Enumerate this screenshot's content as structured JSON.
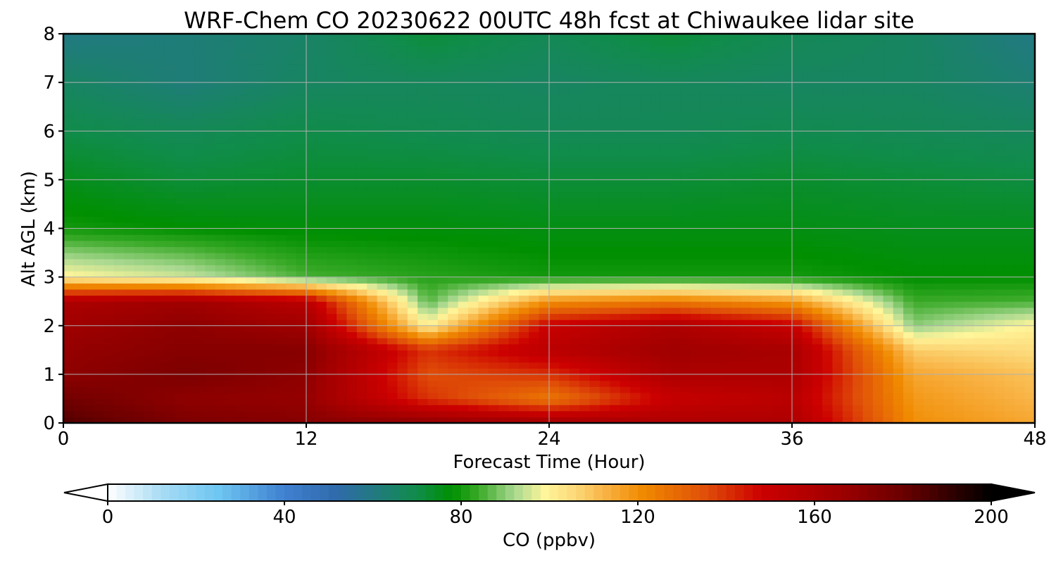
{
  "chart_data": {
    "type": "heatmap",
    "title": "WRF-Chem CO  20230622 00UTC 48h fcst at Chiwaukee lidar site",
    "xlabel": "Forecast Time (Hour)",
    "ylabel": "Alt AGL (km)",
    "xlim": [
      0,
      48
    ],
    "ylim": [
      0,
      8
    ],
    "xticks": [
      0,
      12,
      24,
      36,
      48
    ],
    "yticks": [
      0,
      1,
      2,
      3,
      4,
      5,
      6,
      7,
      8
    ],
    "grid": true,
    "x_hours": [
      0,
      6,
      12,
      18,
      24,
      30,
      36,
      42,
      48
    ],
    "y_km": [
      0,
      0.5,
      1,
      1.5,
      2,
      2.5,
      3,
      4,
      5,
      6,
      7,
      8
    ],
    "co_ppbv": [
      [
        185,
        175,
        172,
        170,
        165,
        160,
        160,
        120,
        115
      ],
      [
        178,
        170,
        168,
        140,
        125,
        150,
        155,
        118,
        112
      ],
      [
        170,
        175,
        170,
        135,
        140,
        160,
        160,
        115,
        110
      ],
      [
        168,
        172,
        172,
        140,
        155,
        165,
        162,
        108,
        105
      ],
      [
        165,
        170,
        165,
        100,
        150,
        160,
        150,
        90,
        100
      ],
      [
        160,
        165,
        155,
        86,
        120,
        125,
        118,
        84,
        85
      ],
      [
        100,
        95,
        85,
        82,
        80,
        80,
        80,
        78,
        78
      ],
      [
        80,
        78,
        77,
        77,
        76,
        76,
        76,
        75,
        75
      ],
      [
        75,
        72,
        73,
        73,
        72,
        72,
        73,
        72,
        71
      ],
      [
        70,
        68,
        70,
        69,
        68,
        68,
        69,
        68,
        67
      ],
      [
        66,
        62,
        66,
        67,
        66,
        67,
        66,
        66,
        63
      ],
      [
        60,
        62,
        65,
        72,
        68,
        72,
        68,
        66,
        60
      ]
    ],
    "colorbar": {
      "label": "CO  (ppbv)",
      "min": 0,
      "max": 200,
      "ticks": [
        0,
        40,
        80,
        120,
        160,
        200
      ],
      "extend": "both",
      "stops": [
        {
          "v": 0,
          "c": "#ffffff"
        },
        {
          "v": 12,
          "c": "#a9dcf4"
        },
        {
          "v": 25,
          "c": "#6ec6f2"
        },
        {
          "v": 40,
          "c": "#3f80d0"
        },
        {
          "v": 52,
          "c": "#2f6aaa"
        },
        {
          "v": 62,
          "c": "#1f7d78"
        },
        {
          "v": 70,
          "c": "#108c4a"
        },
        {
          "v": 78,
          "c": "#008f00"
        },
        {
          "v": 84,
          "c": "#3aaa28"
        },
        {
          "v": 92,
          "c": "#a8d890"
        },
        {
          "v": 99,
          "c": "#fff59a"
        },
        {
          "v": 106,
          "c": "#fcd878"
        },
        {
          "v": 113,
          "c": "#f8b040"
        },
        {
          "v": 121,
          "c": "#f08a00"
        },
        {
          "v": 135,
          "c": "#e05008"
        },
        {
          "v": 148,
          "c": "#cc0000"
        },
        {
          "v": 165,
          "c": "#a00000"
        },
        {
          "v": 180,
          "c": "#6a0000"
        },
        {
          "v": 200,
          "c": "#000000"
        }
      ]
    }
  }
}
